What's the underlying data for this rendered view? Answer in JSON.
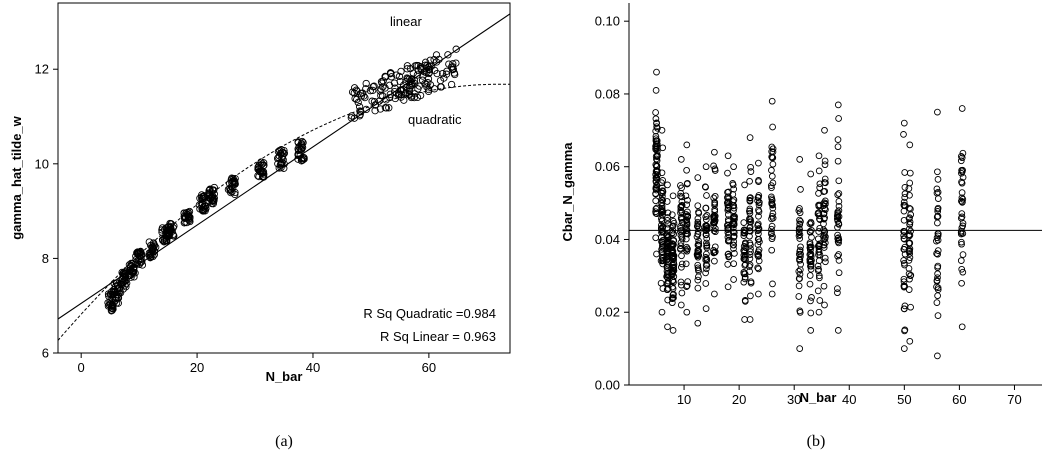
{
  "chart_data": [
    {
      "type": "scatter",
      "panel_caption": "(a)",
      "xlabel": "N_bar",
      "ylabel": "gamma_hat_tilde_w",
      "xlim": [
        -4,
        74
      ],
      "ylim": [
        6,
        13.4
      ],
      "xticks": [
        0,
        20,
        40,
        60
      ],
      "yticks": [
        6,
        8,
        10,
        12
      ],
      "grid": false,
      "fit_lines": [
        {
          "label": "linear",
          "style": "solid",
          "intercept": 7.05,
          "slope": 0.0827
        },
        {
          "label": "quadratic",
          "style": "dashed",
          "a": 6.82,
          "b": 0.1345,
          "c": -0.00093
        }
      ],
      "annotations": [
        "R Sq Quadratic =0.984",
        "R Sq Linear = 0.963"
      ],
      "clusters": [
        {
          "x": 5.1,
          "y_min": 6.85,
          "y_max": 7.3
        },
        {
          "x": 6.2,
          "y_min": 7.05,
          "y_max": 7.5
        },
        {
          "x": 7.5,
          "y_min": 7.35,
          "y_max": 7.75
        },
        {
          "x": 8.8,
          "y_min": 7.6,
          "y_max": 7.9
        },
        {
          "x": 10.0,
          "y_min": 7.85,
          "y_max": 8.15
        },
        {
          "x": 12.3,
          "y_min": 8.0,
          "y_max": 8.35
        },
        {
          "x": 14.5,
          "y_min": 8.35,
          "y_max": 8.65
        },
        {
          "x": 15.5,
          "y_min": 8.45,
          "y_max": 8.75
        },
        {
          "x": 18.2,
          "y_min": 8.75,
          "y_max": 9.0
        },
        {
          "x": 21.0,
          "y_min": 9.0,
          "y_max": 9.35
        },
        {
          "x": 22.5,
          "y_min": 9.15,
          "y_max": 9.5
        },
        {
          "x": 26.0,
          "y_min": 9.35,
          "y_max": 9.7
        },
        {
          "x": 31.0,
          "y_min": 9.7,
          "y_max": 10.05
        },
        {
          "x": 34.5,
          "y_min": 9.9,
          "y_max": 10.35
        },
        {
          "x": 38.0,
          "y_min": 10.05,
          "y_max": 10.5
        },
        {
          "x": 51.0,
          "y_min": 11.1,
          "y_max": 11.85
        },
        {
          "x": 56.0,
          "y_min": 11.3,
          "y_max": 12.05
        },
        {
          "x": 60.5,
          "y_min": 11.5,
          "y_max": 12.3
        }
      ]
    },
    {
      "type": "scatter",
      "panel_caption": "(b)",
      "xlabel": "N_bar",
      "ylabel": "Cbar_N_gamma",
      "xlim": [
        0,
        75
      ],
      "ylim": [
        0,
        0.105
      ],
      "xticks": [
        10,
        20,
        30,
        40,
        50,
        60,
        70
      ],
      "xticklabels": [
        "10",
        "20",
        "30",
        "40",
        "50",
        "60",
        "70"
      ],
      "yticks": [
        0,
        0.02,
        0.04,
        0.06,
        0.08,
        0.1
      ],
      "yticklabels": [
        "0.00",
        "0.02",
        "0.04",
        "0.06",
        "0.08",
        "0.10"
      ],
      "grid": false,
      "reference_line_y": 0.0425,
      "clusters": [
        {
          "x": 5.0,
          "y_min": 0.036,
          "y_max": 0.086
        },
        {
          "x": 6.0,
          "y_min": 0.02,
          "y_max": 0.07
        },
        {
          "x": 7.0,
          "y_min": 0.016,
          "y_max": 0.055
        },
        {
          "x": 8.0,
          "y_min": 0.015,
          "y_max": 0.052
        },
        {
          "x": 9.5,
          "y_min": 0.022,
          "y_max": 0.062
        },
        {
          "x": 10.5,
          "y_min": 0.02,
          "y_max": 0.066
        },
        {
          "x": 12.5,
          "y_min": 0.017,
          "y_max": 0.057
        },
        {
          "x": 14.0,
          "y_min": 0.021,
          "y_max": 0.06
        },
        {
          "x": 15.5,
          "y_min": 0.025,
          "y_max": 0.064
        },
        {
          "x": 18.0,
          "y_min": 0.027,
          "y_max": 0.063
        },
        {
          "x": 19.0,
          "y_min": 0.029,
          "y_max": 0.06
        },
        {
          "x": 21.0,
          "y_min": 0.018,
          "y_max": 0.055
        },
        {
          "x": 22.0,
          "y_min": 0.018,
          "y_max": 0.068
        },
        {
          "x": 23.5,
          "y_min": 0.025,
          "y_max": 0.061
        },
        {
          "x": 26.0,
          "y_min": 0.025,
          "y_max": 0.078
        },
        {
          "x": 31.0,
          "y_min": 0.01,
          "y_max": 0.062
        },
        {
          "x": 33.0,
          "y_min": 0.015,
          "y_max": 0.058
        },
        {
          "x": 34.5,
          "y_min": 0.02,
          "y_max": 0.063
        },
        {
          "x": 35.5,
          "y_min": 0.022,
          "y_max": 0.07
        },
        {
          "x": 38.0,
          "y_min": 0.015,
          "y_max": 0.077
        },
        {
          "x": 50.0,
          "y_min": 0.01,
          "y_max": 0.072
        },
        {
          "x": 51.0,
          "y_min": 0.012,
          "y_max": 0.066
        },
        {
          "x": 56.0,
          "y_min": 0.008,
          "y_max": 0.075
        },
        {
          "x": 60.5,
          "y_min": 0.016,
          "y_max": 0.076
        }
      ]
    }
  ]
}
